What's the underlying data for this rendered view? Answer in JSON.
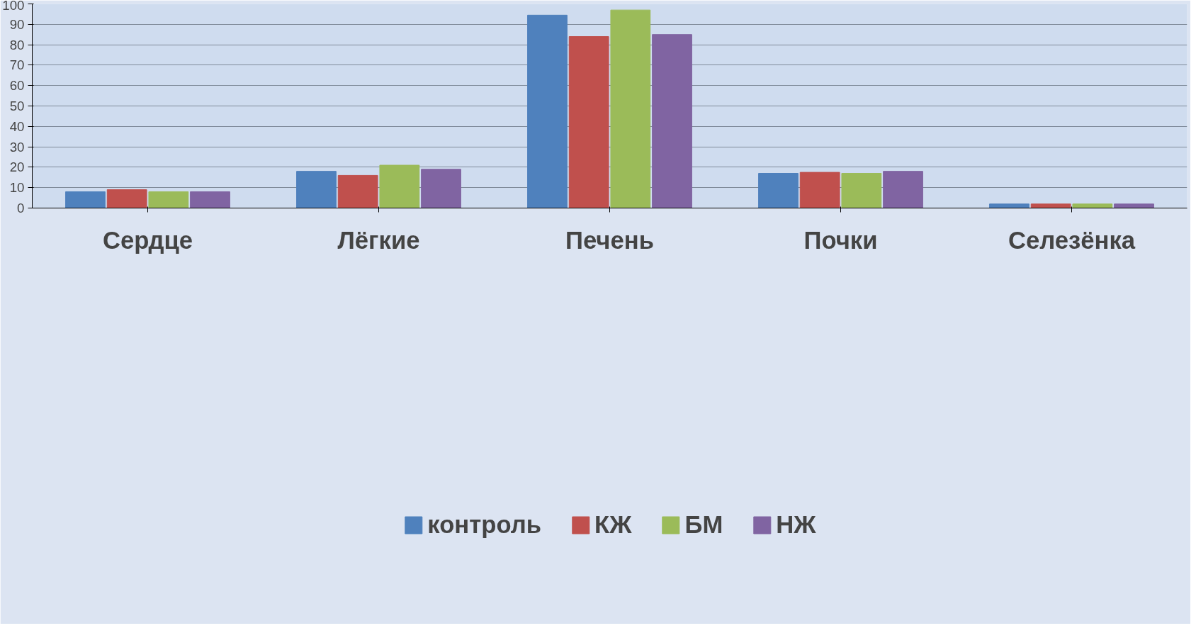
{
  "chart_data": {
    "type": "bar",
    "categories": [
      "Сердце",
      "Лёгкие",
      "Печень",
      "Почки",
      "Селезёнка"
    ],
    "series": [
      {
        "name": "контроль",
        "color": "#4f81bd",
        "values": [
          8,
          18,
          94.5,
          17,
          2
        ]
      },
      {
        "name": "КЖ",
        "color": "#c0504d",
        "values": [
          9,
          16,
          84,
          17.5,
          2
        ]
      },
      {
        "name": "БМ",
        "color": "#9bbb59",
        "values": [
          8,
          21,
          97,
          17,
          2
        ]
      },
      {
        "name": "НЖ",
        "color": "#8064a2",
        "values": [
          8,
          19,
          85,
          18,
          2
        ]
      }
    ],
    "ylim": [
      0,
      100
    ],
    "yticks": [
      0,
      10,
      20,
      30,
      40,
      50,
      60,
      70,
      80,
      90,
      100
    ],
    "grid": "y",
    "legend": "bottom"
  }
}
